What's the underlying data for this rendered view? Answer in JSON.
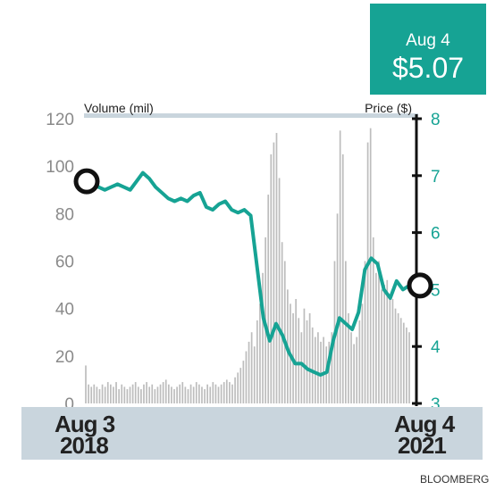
{
  "badge": {
    "date": "Aug 4",
    "price": "$5.07"
  },
  "source": "BLOOMBERG",
  "colors": {
    "price_line": "#16a394",
    "volume_bars": "#bdbdbd",
    "band": "#c9d5dd",
    "badge_bg": "#16a394"
  },
  "chart_data": {
    "type": "line",
    "xlabel": "",
    "x_start_label": [
      "Aug 3",
      "2018"
    ],
    "x_end_label": [
      "Aug 4",
      "2021"
    ],
    "y_left": {
      "label": "Volume (mil)",
      "ticks": [
        "0",
        "20",
        "40",
        "60",
        "80",
        "100",
        "120"
      ],
      "range": [
        0,
        120
      ]
    },
    "y_right": {
      "label": "Price ($)",
      "ticks": [
        "3",
        "4",
        "5",
        "6",
        "7",
        "8"
      ],
      "range": [
        3,
        8
      ]
    },
    "grid": false,
    "endpoints": {
      "start_price": 6.9,
      "end_price": 5.07
    },
    "series": [
      {
        "name": "Price ($)",
        "kind": "line",
        "y_axis": "right",
        "values": [
          6.9,
          6.95,
          6.8,
          6.75,
          6.8,
          6.85,
          6.8,
          6.75,
          6.9,
          7.05,
          6.95,
          6.8,
          6.7,
          6.6,
          6.55,
          6.6,
          6.55,
          6.65,
          6.7,
          6.45,
          6.4,
          6.5,
          6.55,
          6.4,
          6.35,
          6.4,
          6.3,
          5.4,
          4.5,
          4.1,
          4.4,
          4.2,
          3.9,
          3.7,
          3.7,
          3.6,
          3.55,
          3.5,
          3.55,
          4.1,
          4.5,
          4.4,
          4.3,
          4.6,
          5.35,
          5.55,
          5.45,
          5.0,
          4.85,
          5.15,
          5.0,
          5.07
        ]
      },
      {
        "name": "Volume (mil)",
        "kind": "bar",
        "y_axis": "left",
        "values": [
          16,
          8,
          7,
          8,
          7,
          6,
          8,
          7,
          9,
          8,
          7,
          9,
          6,
          8,
          7,
          6,
          7,
          8,
          9,
          7,
          6,
          8,
          9,
          7,
          8,
          6,
          7,
          8,
          9,
          10,
          8,
          7,
          6,
          7,
          8,
          9,
          7,
          6,
          8,
          7,
          9,
          8,
          7,
          6,
          8,
          7,
          9,
          8,
          7,
          8,
          9,
          10,
          9,
          8,
          11,
          13,
          15,
          18,
          22,
          26,
          30,
          24,
          35,
          42,
          55,
          70,
          88,
          105,
          110,
          114,
          95,
          68,
          60,
          48,
          42,
          38,
          44,
          36,
          30,
          40,
          35,
          38,
          32,
          28,
          30,
          26,
          28,
          24,
          26,
          30,
          60,
          80,
          115,
          105,
          60,
          38,
          30,
          25,
          28,
          35,
          42,
          60,
          110,
          116,
          70,
          55,
          60,
          48,
          50,
          52,
          46,
          44,
          40,
          38,
          36,
          34,
          32,
          30
        ]
      }
    ]
  }
}
